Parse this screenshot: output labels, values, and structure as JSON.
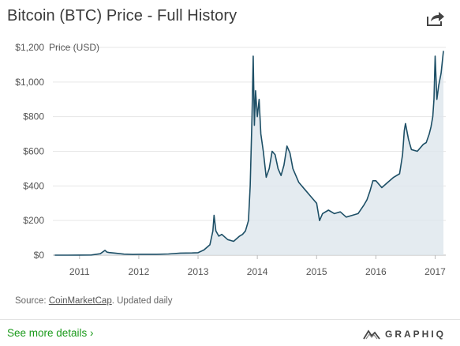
{
  "header": {
    "title": "Bitcoin (BTC) Price - Full History",
    "share_icon": "share-icon"
  },
  "chart_data": {
    "type": "area",
    "title": "Bitcoin (BTC) Price - Full History",
    "ylabel": "Price (USD)",
    "xlabel": "",
    "xlim": [
      2010.55,
      2017.18
    ],
    "ylim": [
      0,
      1200
    ],
    "y_ticks": [
      0,
      200,
      400,
      600,
      800,
      1000,
      1200
    ],
    "y_tick_labels": [
      "$0",
      "$200",
      "$400",
      "$600",
      "$800",
      "$1,000",
      "$1,200"
    ],
    "x_ticks": [
      2011,
      2012,
      2013,
      2014,
      2015,
      2016,
      2017
    ],
    "x_tick_labels": [
      "2011",
      "2012",
      "2013",
      "2014",
      "2015",
      "2016",
      "2017"
    ],
    "grid": true,
    "line_color": "#1d4f66",
    "fill_color": "#dde6ec",
    "series": [
      {
        "x": [
          2010.58,
          2010.8,
          2011.0,
          2011.2,
          2011.35,
          2011.43,
          2011.46,
          2011.5,
          2011.6,
          2011.75,
          2011.9,
          2012.0,
          2012.3,
          2012.5,
          2012.7,
          2012.9,
          2013.0,
          2013.1,
          2013.2,
          2013.25,
          2013.27,
          2013.3,
          2013.35,
          2013.4,
          2013.5,
          2013.6,
          2013.7,
          2013.75,
          2013.8,
          2013.85,
          2013.88,
          2013.91,
          2013.93,
          2013.95,
          2013.97,
          2014.0,
          2014.03,
          2014.06,
          2014.1,
          2014.15,
          2014.2,
          2014.25,
          2014.3,
          2014.35,
          2014.4,
          2014.45,
          2014.5,
          2014.55,
          2014.6,
          2014.7,
          2014.8,
          2014.9,
          2015.0,
          2015.05,
          2015.1,
          2015.2,
          2015.3,
          2015.4,
          2015.5,
          2015.6,
          2015.7,
          2015.8,
          2015.85,
          2015.9,
          2015.95,
          2016.0,
          2016.1,
          2016.2,
          2016.3,
          2016.4,
          2016.45,
          2016.48,
          2016.5,
          2016.55,
          2016.6,
          2016.7,
          2016.8,
          2016.85,
          2016.9,
          2016.93,
          2016.96,
          2016.98,
          2017.0,
          2017.03,
          2017.06,
          2017.1,
          2017.14
        ],
        "values": [
          0.06,
          0.2,
          0.3,
          1,
          8,
          28,
          18,
          15,
          12,
          6,
          4,
          5,
          5,
          7,
          12,
          13,
          14,
          30,
          60,
          140,
          230,
          140,
          110,
          120,
          90,
          80,
          110,
          120,
          140,
          200,
          400,
          800,
          1150,
          750,
          950,
          800,
          900,
          700,
          600,
          450,
          500,
          600,
          580,
          500,
          460,
          520,
          630,
          590,
          500,
          420,
          380,
          340,
          300,
          200,
          240,
          260,
          240,
          250,
          220,
          230,
          240,
          290,
          320,
          370,
          430,
          430,
          390,
          420,
          450,
          470,
          580,
          720,
          760,
          670,
          610,
          600,
          640,
          650,
          700,
          740,
          800,
          900,
          1150,
          900,
          980,
          1050,
          1180
        ]
      }
    ]
  },
  "footer": {
    "source_prefix": "Source: ",
    "source_link": "CoinMarketCap",
    "source_suffix": ". Updated daily",
    "more_details": "See more details ›",
    "brand": "GRAPHIQ",
    "brand_icon": "graphiq-logo-icon"
  }
}
